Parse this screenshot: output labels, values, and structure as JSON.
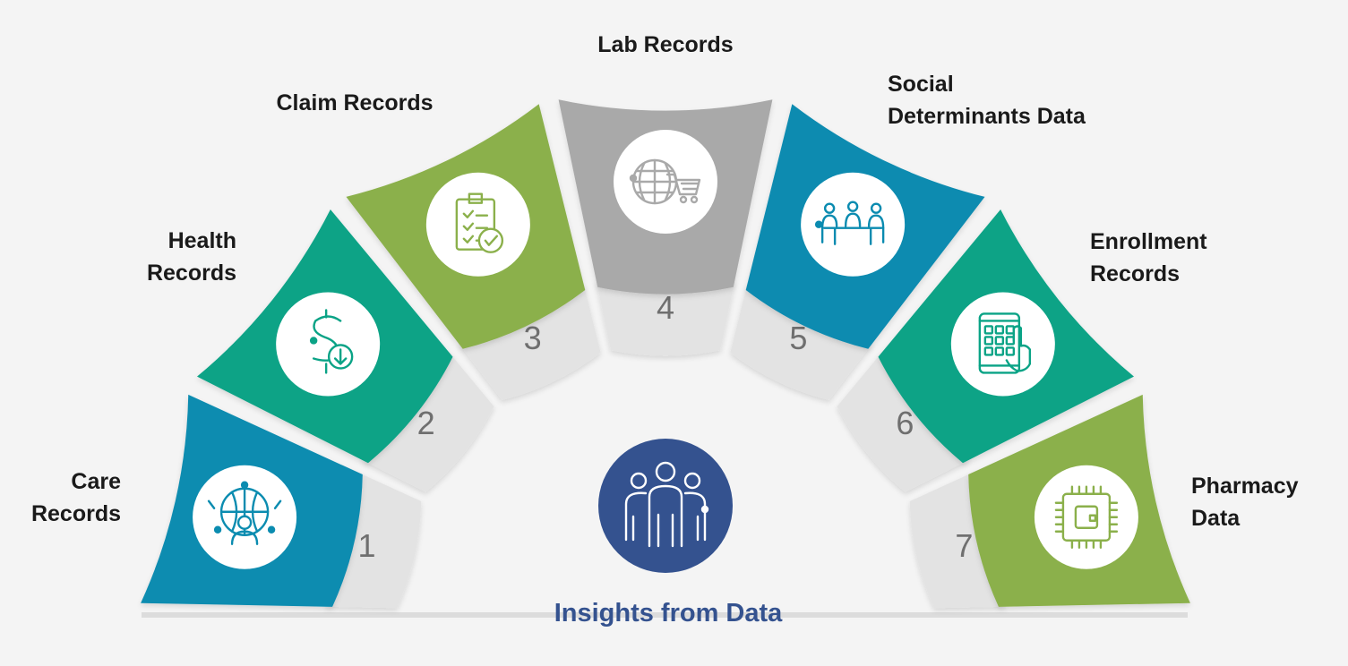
{
  "center": {
    "title": "Insights from Data",
    "icon": "people-group-icon",
    "circle_color": "#34528f",
    "title_color": "#34528f"
  },
  "segments": [
    {
      "number": "1",
      "label_lines": [
        "Care",
        "Records"
      ],
      "color": "#0b8cb0",
      "icon": "global-person-network-icon"
    },
    {
      "number": "2",
      "label_lines": [
        "Health",
        "Records"
      ],
      "color": "#0aa386",
      "icon": "dollar-download-icon"
    },
    {
      "number": "3",
      "label_lines": [
        "Claim Records"
      ],
      "color": "#8bb04b",
      "icon": "clipboard-check-icon"
    },
    {
      "number": "4",
      "label_lines": [
        "Lab Records"
      ],
      "color": "#a9a9a9",
      "icon": "globe-cart-icon"
    },
    {
      "number": "5",
      "label_lines": [
        "Social",
        "Determinants Data"
      ],
      "color": "#0a8bb0",
      "icon": "meeting-table-icon"
    },
    {
      "number": "6",
      "label_lines": [
        "Enrollment",
        "Records"
      ],
      "color": "#0aa386",
      "icon": "tablet-touch-icon"
    },
    {
      "number": "7",
      "label_lines": [
        "Pharmacy",
        "Data"
      ],
      "color": "#8bb04b",
      "icon": "chip-icon"
    }
  ]
}
